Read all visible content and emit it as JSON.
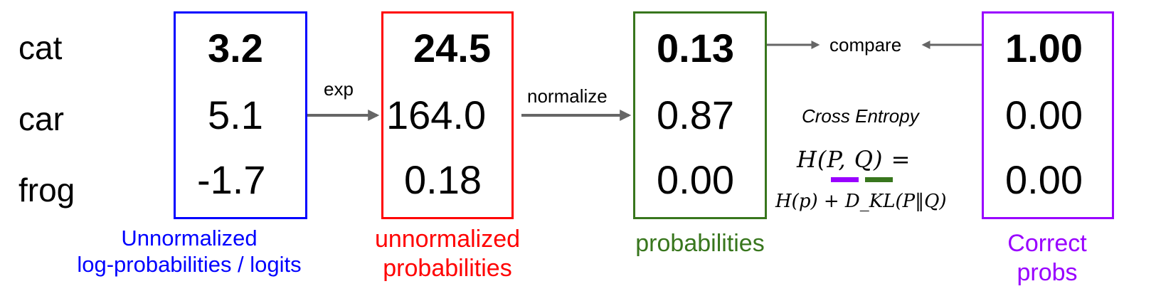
{
  "classes": [
    "cat",
    "car",
    "frog"
  ],
  "columns": {
    "logits": {
      "values": [
        "3.2",
        "5.1",
        "-1.7"
      ],
      "caption_line1": "Unnormalized",
      "caption_line2": "log-probabilities / logits",
      "color": "#0000ff"
    },
    "unnormalized": {
      "values": [
        "24.5",
        "164.0",
        "0.18"
      ],
      "caption_line1": "unnormalized",
      "caption_line2": "probabilities",
      "color": "#ff0000"
    },
    "probabilities": {
      "values": [
        "0.13",
        "0.87",
        "0.00"
      ],
      "caption_line1": "probabilities",
      "color": "#38761d"
    },
    "correct": {
      "values": [
        "1.00",
        "0.00",
        "0.00"
      ],
      "caption_line1": "Correct",
      "caption_line2": "probs",
      "color": "#9900ff"
    }
  },
  "arrows": {
    "exp": "exp",
    "normalize": "normalize",
    "compare": "compare"
  },
  "cross_entropy": {
    "title": "Cross Entropy",
    "formula_line1": "H(P, Q) =",
    "formula_line2": "H(p) + D_KL(P‖Q)",
    "underline_p_color": "#9900ff",
    "underline_q_color": "#38761d"
  },
  "arrow_color": "#666666"
}
